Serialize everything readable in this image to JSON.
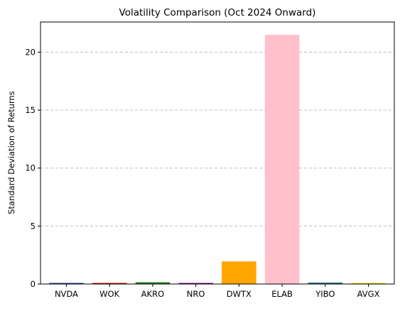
{
  "chart_data": {
    "type": "bar",
    "title": "Volatility Comparison (Oct 2024 Onward)",
    "xlabel": "",
    "ylabel": "Standard Deviation of Returns",
    "categories": [
      "NVDA",
      "WOK",
      "AKRO",
      "NRO",
      "DWTX",
      "ELAB",
      "YIBO",
      "AVGX"
    ],
    "values": [
      0.03,
      0.08,
      0.15,
      0.02,
      1.95,
      21.5,
      0.12,
      0.05
    ],
    "colors": [
      "#1f3a93",
      "#cc0000",
      "#1f7a1f",
      "#800080",
      "#ffa500",
      "#ffc0cb",
      "#1a6b78",
      "#e6d200"
    ],
    "ylim": [
      0,
      22.6
    ],
    "yticks": [
      0,
      5,
      10,
      15,
      20
    ],
    "grid": "y-dashed"
  }
}
